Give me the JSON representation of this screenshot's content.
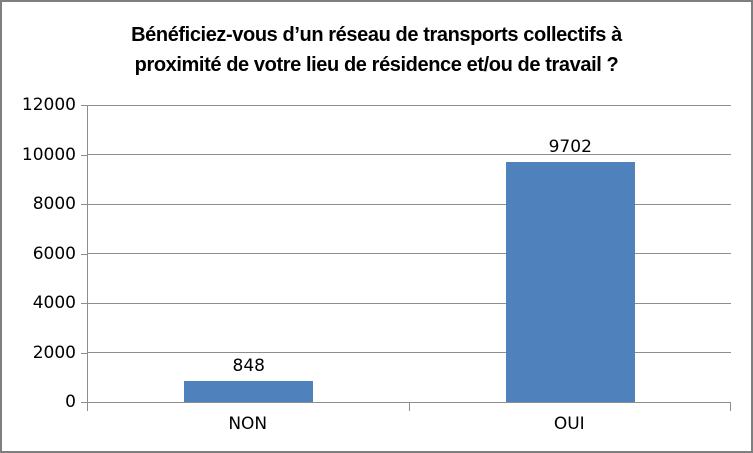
{
  "frame": {
    "border_color": "#7f7f7f",
    "background": "#ffffff"
  },
  "chart_data": {
    "type": "bar",
    "title": "Bénéficiez-vous d’un réseau de transports collectifs à proximité de votre lieu de résidence et/ou de travail ?",
    "title_lines": [
      "Bénéficiez-vous d’un réseau de transports collectifs à",
      "proximité de votre lieu de résidence et/ou de travail ?"
    ],
    "categories": [
      "NON",
      "OUI"
    ],
    "values": [
      848,
      9702
    ],
    "data_labels": [
      "848",
      "9702"
    ],
    "xlabel": "",
    "ylabel": "",
    "ylim": [
      0,
      12000
    ],
    "ytick_step": 2000,
    "yticks": [
      0,
      2000,
      4000,
      6000,
      8000,
      10000,
      12000
    ],
    "grid": true,
    "legend_position": "none",
    "bar_color": "#4f81bd",
    "gridline_color": "#8e8e8e",
    "axis_color": "#8e8e8e",
    "text_color": "#000000"
  }
}
